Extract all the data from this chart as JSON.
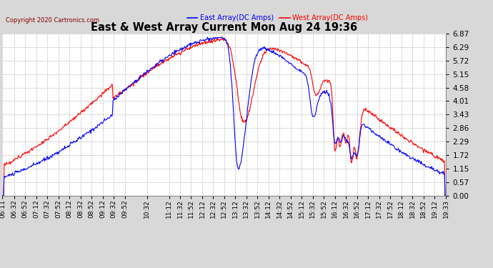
{
  "title": "East & West Array Current Mon Aug 24 19:36",
  "copyright": "Copyright 2020 Cartronics.com",
  "legend_east": "East Array(DC Amps)",
  "legend_west": "West Array(DC Amps)",
  "east_color": "blue",
  "west_color": "red",
  "bg_color": "#d8d8d8",
  "plot_bg_color": "#ffffff",
  "yticks": [
    0.0,
    0.57,
    1.15,
    1.72,
    2.29,
    2.86,
    3.43,
    4.01,
    4.58,
    5.15,
    5.72,
    6.29,
    6.87
  ],
  "ylim": [
    0.0,
    6.87
  ],
  "xtick_labels": [
    "06:11",
    "06:32",
    "06:52",
    "07:12",
    "07:32",
    "07:52",
    "08:12",
    "08:32",
    "08:52",
    "09:12",
    "09:32",
    "09:52",
    "10:32",
    "11:12",
    "11:32",
    "11:52",
    "12:12",
    "12:32",
    "12:52",
    "13:12",
    "13:32",
    "13:52",
    "14:12",
    "14:32",
    "14:52",
    "15:12",
    "15:32",
    "15:52",
    "16:12",
    "16:32",
    "16:52",
    "17:12",
    "17:32",
    "17:52",
    "18:12",
    "18:32",
    "18:52",
    "19:12",
    "19:33"
  ]
}
